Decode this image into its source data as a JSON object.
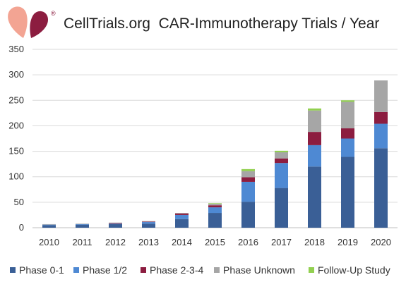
{
  "chart_data": {
    "type": "bar",
    "stacked": true,
    "title": "CellTrials.org  CAR-Immunotherapy Trials / Year",
    "xlabel": "",
    "ylabel": "",
    "categories": [
      "2010",
      "2011",
      "2012",
      "2013",
      "2014",
      "2015",
      "2016",
      "2017",
      "2018",
      "2019",
      "2020"
    ],
    "ylim": [
      0,
      350
    ],
    "yticks": [
      0,
      50,
      100,
      150,
      200,
      250,
      300,
      350
    ],
    "grid": true,
    "legend_position": "bottom",
    "series": [
      {
        "name": "Phase 0-1",
        "color": "#3a5f96",
        "values": [
          5,
          6,
          7,
          8,
          17,
          29,
          51,
          78,
          120,
          139,
          156
        ]
      },
      {
        "name": "Phase 1/2",
        "color": "#4e89d3",
        "values": [
          1,
          1,
          1,
          3,
          8,
          11,
          39,
          49,
          42,
          36,
          48
        ]
      },
      {
        "name": "Phase 2-3-4",
        "color": "#8c1d40",
        "values": [
          0,
          0,
          1,
          1,
          3,
          4,
          9,
          9,
          26,
          20,
          23
        ]
      },
      {
        "name": "Phase Unknown",
        "color": "#a6a6a6",
        "values": [
          1,
          1,
          1,
          1,
          1,
          3,
          12,
          12,
          42,
          52,
          62
        ]
      },
      {
        "name": "Follow-Up Study",
        "color": "#92d050",
        "values": [
          0,
          0,
          0,
          0,
          0,
          1,
          4,
          3,
          4,
          3,
          0
        ]
      }
    ]
  },
  "logo": {
    "trademark_symbol": "®"
  }
}
